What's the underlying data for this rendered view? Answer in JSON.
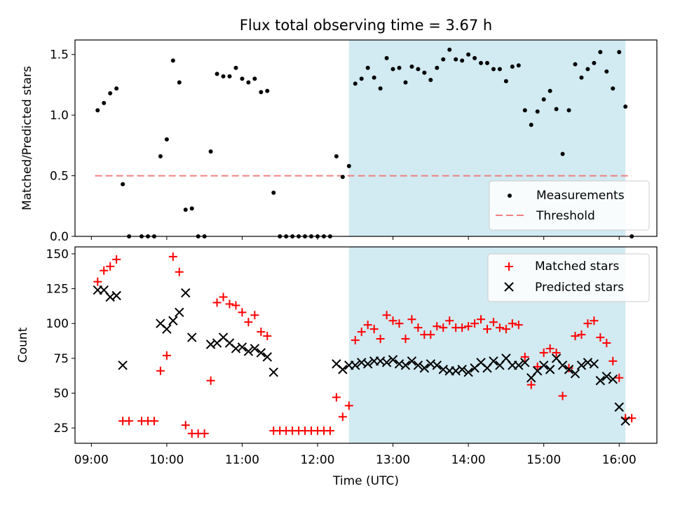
{
  "title": "Flux total observing time = 3.67 h",
  "colors": {
    "measurement": "#000000",
    "threshold": "#f08080",
    "matched": "#ff0000",
    "predicted": "#000000",
    "observing_span": "#add8e6"
  },
  "chart_data": [
    {
      "type": "scatter",
      "ylabel": "Matched/Predicted stars",
      "ylim": [
        0,
        1.62
      ],
      "yticks": [
        "0.0",
        "0.5",
        "1.0",
        "1.5"
      ],
      "ytick_values": [
        0,
        0.5,
        1.0,
        1.5
      ],
      "legend": [
        "Measurements",
        "Threshold"
      ],
      "legend_placement": "lower-right",
      "observing_span": [
        "12:25",
        "16:05"
      ],
      "threshold": {
        "value": 0.5,
        "from": "09:03",
        "to": "16:10"
      },
      "series": [
        {
          "name": "Measurements",
          "marker": "dot",
          "points": [
            [
              "09:05",
              1.04
            ],
            [
              "09:10",
              1.1
            ],
            [
              "09:15",
              1.18
            ],
            [
              "09:20",
              1.22
            ],
            [
              "09:25",
              0.43
            ],
            [
              "09:30",
              0.0
            ],
            [
              "09:40",
              0.0
            ],
            [
              "09:45",
              0.0
            ],
            [
              "09:50",
              0.0
            ],
            [
              "09:55",
              0.66
            ],
            [
              "10:00",
              0.8
            ],
            [
              "10:05",
              1.45
            ],
            [
              "10:10",
              1.27
            ],
            [
              "10:15",
              0.22
            ],
            [
              "10:20",
              0.23
            ],
            [
              "10:25",
              0.0
            ],
            [
              "10:30",
              0.0
            ],
            [
              "10:35",
              0.7
            ],
            [
              "10:40",
              1.34
            ],
            [
              "10:45",
              1.32
            ],
            [
              "10:50",
              1.32
            ],
            [
              "10:55",
              1.39
            ],
            [
              "11:00",
              1.3
            ],
            [
              "11:05",
              1.27
            ],
            [
              "11:10",
              1.3
            ],
            [
              "11:15",
              1.19
            ],
            [
              "11:20",
              1.2
            ],
            [
              "11:25",
              0.36
            ],
            [
              "11:30",
              0.0
            ],
            [
              "11:35",
              0.0
            ],
            [
              "11:40",
              0.0
            ],
            [
              "11:45",
              0.0
            ],
            [
              "11:50",
              0.0
            ],
            [
              "11:55",
              0.0
            ],
            [
              "12:00",
              0.0
            ],
            [
              "12:05",
              0.0
            ],
            [
              "12:10",
              0.0
            ],
            [
              "12:15",
              0.66
            ],
            [
              "12:20",
              0.49
            ],
            [
              "12:25",
              0.58
            ],
            [
              "12:30",
              1.26
            ],
            [
              "12:35",
              1.3
            ],
            [
              "12:40",
              1.39
            ],
            [
              "12:45",
              1.31
            ],
            [
              "12:50",
              1.22
            ],
            [
              "12:55",
              1.47
            ],
            [
              "13:00",
              1.38
            ],
            [
              "13:05",
              1.39
            ],
            [
              "13:10",
              1.27
            ],
            [
              "13:15",
              1.4
            ],
            [
              "13:20",
              1.38
            ],
            [
              "13:25",
              1.35
            ],
            [
              "13:30",
              1.29
            ],
            [
              "13:35",
              1.39
            ],
            [
              "13:40",
              1.46
            ],
            [
              "13:45",
              1.54
            ],
            [
              "13:50",
              1.46
            ],
            [
              "13:55",
              1.45
            ],
            [
              "14:00",
              1.5
            ],
            [
              "14:05",
              1.47
            ],
            [
              "14:10",
              1.43
            ],
            [
              "14:15",
              1.43
            ],
            [
              "14:20",
              1.38
            ],
            [
              "14:25",
              1.38
            ],
            [
              "14:30",
              1.28
            ],
            [
              "14:35",
              1.4
            ],
            [
              "14:40",
              1.41
            ],
            [
              "14:45",
              1.04
            ],
            [
              "14:50",
              0.92
            ],
            [
              "14:55",
              1.03
            ],
            [
              "15:00",
              1.13
            ],
            [
              "15:05",
              1.2
            ],
            [
              "15:10",
              1.05
            ],
            [
              "15:15",
              0.68
            ],
            [
              "15:20",
              1.04
            ],
            [
              "15:25",
              1.42
            ],
            [
              "15:30",
              1.31
            ],
            [
              "15:35",
              1.38
            ],
            [
              "15:40",
              1.43
            ],
            [
              "15:45",
              1.52
            ],
            [
              "15:50",
              1.36
            ],
            [
              "15:55",
              1.22
            ],
            [
              "16:00",
              1.52
            ],
            [
              "16:05",
              1.07
            ],
            [
              "16:10",
              0.0
            ]
          ]
        },
        {
          "name": "Threshold",
          "marker": "dashed-line"
        }
      ]
    },
    {
      "type": "scatter",
      "ylabel": "Count",
      "xlabel": "Time (UTC)",
      "ylim": [
        14,
        155
      ],
      "yticks": [
        "25",
        "50",
        "75",
        "100",
        "125",
        "150"
      ],
      "ytick_values": [
        25,
        50,
        75,
        100,
        125,
        150
      ],
      "xlim": [
        "08:47",
        "16:30"
      ],
      "xticks": [
        "09:00",
        "10:00",
        "11:00",
        "12:00",
        "13:00",
        "14:00",
        "15:00",
        "16:00"
      ],
      "legend": [
        "Matched stars",
        "Predicted stars"
      ],
      "legend_placement": "upper-right",
      "observing_span": [
        "12:25",
        "16:05"
      ],
      "series": [
        {
          "name": "Matched stars",
          "marker": "plus",
          "points": [
            [
              "09:05",
              130
            ],
            [
              "09:10",
              138
            ],
            [
              "09:15",
              141
            ],
            [
              "09:20",
              146
            ],
            [
              "09:25",
              30
            ],
            [
              "09:30",
              30
            ],
            [
              "09:40",
              30
            ],
            [
              "09:45",
              30
            ],
            [
              "09:50",
              30
            ],
            [
              "09:55",
              66
            ],
            [
              "10:00",
              77
            ],
            [
              "10:05",
              148
            ],
            [
              "10:10",
              137
            ],
            [
              "10:15",
              27
            ],
            [
              "10:20",
              21
            ],
            [
              "10:25",
              21
            ],
            [
              "10:30",
              21
            ],
            [
              "10:35",
              59
            ],
            [
              "10:40",
              115
            ],
            [
              "10:45",
              119
            ],
            [
              "10:50",
              114
            ],
            [
              "10:55",
              113
            ],
            [
              "11:00",
              108
            ],
            [
              "11:05",
              101
            ],
            [
              "11:10",
              106
            ],
            [
              "11:15",
              94
            ],
            [
              "11:20",
              91
            ],
            [
              "11:25",
              23
            ],
            [
              "11:30",
              23
            ],
            [
              "11:35",
              23
            ],
            [
              "11:40",
              23
            ],
            [
              "11:45",
              23
            ],
            [
              "11:50",
              23
            ],
            [
              "11:55",
              23
            ],
            [
              "12:00",
              23
            ],
            [
              "12:05",
              23
            ],
            [
              "12:10",
              23
            ],
            [
              "12:15",
              47
            ],
            [
              "12:20",
              33
            ],
            [
              "12:25",
              41
            ],
            [
              "12:30",
              88
            ],
            [
              "12:35",
              94
            ],
            [
              "12:40",
              99
            ],
            [
              "12:45",
              96
            ],
            [
              "12:50",
              89
            ],
            [
              "12:55",
              106
            ],
            [
              "13:00",
              102
            ],
            [
              "13:05",
              100
            ],
            [
              "13:10",
              89
            ],
            [
              "13:15",
              103
            ],
            [
              "13:20",
              97
            ],
            [
              "13:25",
              92
            ],
            [
              "13:30",
              92
            ],
            [
              "13:35",
              98
            ],
            [
              "13:40",
              97
            ],
            [
              "13:45",
              102
            ],
            [
              "13:50",
              97
            ],
            [
              "13:55",
              97
            ],
            [
              "14:00",
              98
            ],
            [
              "14:05",
              100
            ],
            [
              "14:10",
              103
            ],
            [
              "14:15",
              96
            ],
            [
              "14:20",
              101
            ],
            [
              "14:25",
              97
            ],
            [
              "14:30",
              96
            ],
            [
              "14:35",
              100
            ],
            [
              "14:40",
              99
            ],
            [
              "14:45",
              76
            ],
            [
              "14:50",
              56
            ],
            [
              "14:55",
              69
            ],
            [
              "15:00",
              79
            ],
            [
              "15:05",
              82
            ],
            [
              "15:10",
              79
            ],
            [
              "15:15",
              48
            ],
            [
              "15:20",
              68
            ],
            [
              "15:25",
              91
            ],
            [
              "15:30",
              92
            ],
            [
              "15:35",
              100
            ],
            [
              "15:40",
              102
            ],
            [
              "15:45",
              90
            ],
            [
              "15:50",
              86
            ],
            [
              "15:55",
              73
            ],
            [
              "16:00",
              61
            ],
            [
              "16:05",
              32
            ],
            [
              "16:10",
              32
            ]
          ]
        },
        {
          "name": "Predicted stars",
          "marker": "x",
          "points": [
            [
              "09:05",
              124
            ],
            [
              "09:10",
              124
            ],
            [
              "09:15",
              119
            ],
            [
              "09:20",
              120
            ],
            [
              "09:25",
              70
            ],
            [
              "09:55",
              100
            ],
            [
              "10:00",
              96
            ],
            [
              "10:05",
              102
            ],
            [
              "10:10",
              108
            ],
            [
              "10:15",
              122
            ],
            [
              "10:20",
              90
            ],
            [
              "10:35",
              85
            ],
            [
              "10:40",
              86
            ],
            [
              "10:45",
              90
            ],
            [
              "10:50",
              86
            ],
            [
              "10:55",
              82
            ],
            [
              "11:00",
              83
            ],
            [
              "11:05",
              80
            ],
            [
              "11:10",
              82
            ],
            [
              "11:15",
              79
            ],
            [
              "11:20",
              76
            ],
            [
              "11:25",
              65
            ],
            [
              "12:15",
              71
            ],
            [
              "12:20",
              67
            ],
            [
              "12:25",
              70
            ],
            [
              "12:30",
              70
            ],
            [
              "12:35",
              72
            ],
            [
              "12:40",
              71
            ],
            [
              "12:45",
              73
            ],
            [
              "12:50",
              73
            ],
            [
              "12:55",
              72
            ],
            [
              "13:00",
              74
            ],
            [
              "13:05",
              71
            ],
            [
              "13:10",
              70
            ],
            [
              "13:15",
              73
            ],
            [
              "13:20",
              70
            ],
            [
              "13:25",
              68
            ],
            [
              "13:30",
              71
            ],
            [
              "13:35",
              70
            ],
            [
              "13:40",
              67
            ],
            [
              "13:45",
              66
            ],
            [
              "13:50",
              66
            ],
            [
              "13:55",
              67
            ],
            [
              "14:00",
              65
            ],
            [
              "14:05",
              68
            ],
            [
              "14:10",
              72
            ],
            [
              "14:15",
              68
            ],
            [
              "14:20",
              73
            ],
            [
              "14:25",
              70
            ],
            [
              "14:30",
              75
            ],
            [
              "14:35",
              70
            ],
            [
              "14:40",
              70
            ],
            [
              "14:45",
              72
            ],
            [
              "14:50",
              61
            ],
            [
              "14:55",
              66
            ],
            [
              "15:00",
              70
            ],
            [
              "15:05",
              67
            ],
            [
              "15:10",
              75
            ],
            [
              "15:15",
              70
            ],
            [
              "15:20",
              67
            ],
            [
              "15:25",
              64
            ],
            [
              "15:30",
              70
            ],
            [
              "15:35",
              72
            ],
            [
              "15:40",
              71
            ],
            [
              "15:45",
              59
            ],
            [
              "15:50",
              62
            ],
            [
              "15:55",
              60
            ],
            [
              "16:00",
              40
            ],
            [
              "16:05",
              30
            ]
          ]
        }
      ]
    }
  ]
}
